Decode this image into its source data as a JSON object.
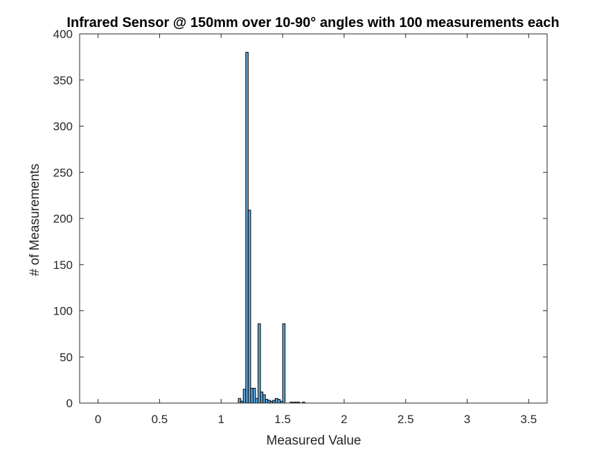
{
  "chart_data": {
    "type": "bar",
    "title": "Infrared Sensor @ 150mm over 10-90° angles with 100 measurements each",
    "xlabel": "Measured Value",
    "ylabel": "# of Measurements",
    "xlim": [
      -0.15,
      3.65
    ],
    "ylim": [
      0,
      400
    ],
    "xticks": [
      "0",
      "0.5",
      "1",
      "1.5",
      "2",
      "2.5",
      "3",
      "3.5"
    ],
    "xtick_values": [
      0,
      0.5,
      1,
      1.5,
      2,
      2.5,
      3,
      3.5
    ],
    "yticks": [
      "0",
      "50",
      "100",
      "150",
      "200",
      "250",
      "300",
      "350",
      "400"
    ],
    "ytick_values": [
      0,
      50,
      100,
      150,
      200,
      250,
      300,
      350,
      400
    ],
    "grid": false,
    "bin_width": 0.02,
    "bins": [
      {
        "x": 1.15,
        "y": 5
      },
      {
        "x": 1.17,
        "y": 2
      },
      {
        "x": 1.19,
        "y": 15
      },
      {
        "x": 1.21,
        "y": 380
      },
      {
        "x": 1.23,
        "y": 209
      },
      {
        "x": 1.25,
        "y": 16
      },
      {
        "x": 1.27,
        "y": 16
      },
      {
        "x": 1.29,
        "y": 5
      },
      {
        "x": 1.31,
        "y": 86
      },
      {
        "x": 1.33,
        "y": 12
      },
      {
        "x": 1.35,
        "y": 9
      },
      {
        "x": 1.37,
        "y": 4
      },
      {
        "x": 1.39,
        "y": 3
      },
      {
        "x": 1.41,
        "y": 2
      },
      {
        "x": 1.43,
        "y": 3
      },
      {
        "x": 1.45,
        "y": 5
      },
      {
        "x": 1.47,
        "y": 4
      },
      {
        "x": 1.49,
        "y": 2
      },
      {
        "x": 1.51,
        "y": 86
      },
      {
        "x": 1.57,
        "y": 1
      },
      {
        "x": 1.59,
        "y": 1
      },
      {
        "x": 1.61,
        "y": 1
      },
      {
        "x": 1.63,
        "y": 1
      },
      {
        "x": 1.67,
        "y": 1
      }
    ],
    "bar_color": "#5fa9dd",
    "edge_color": "#000000"
  }
}
